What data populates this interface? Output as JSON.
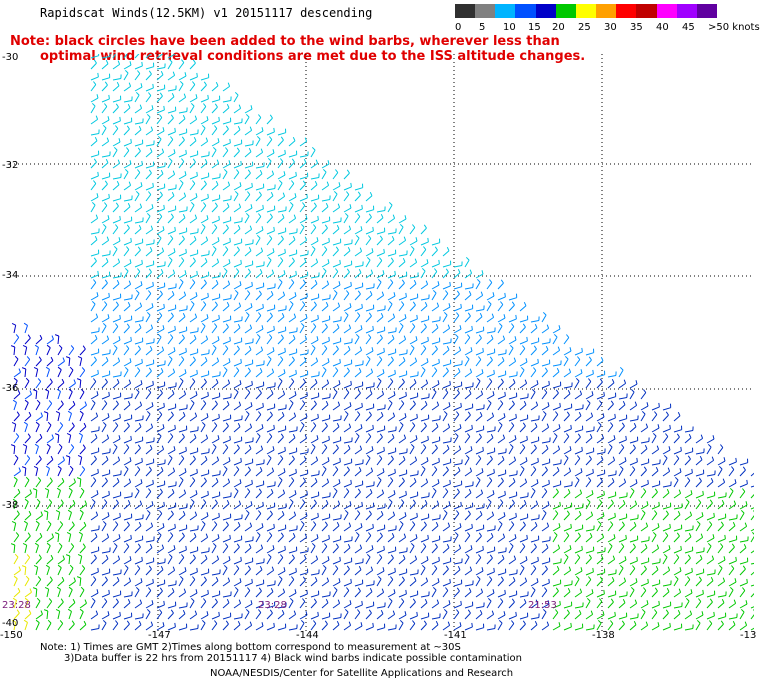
{
  "title": "Rapidscat Winds(12.5KM) v1 20151117 descending",
  "note": {
    "line1": "Note: black circles have been added to the wind barbs, wherever less than",
    "line2": "optimal wind retrieval conditions are met due to the ISS altitude changes."
  },
  "legend": {
    "labels": [
      "0",
      "5",
      "10",
      "15",
      "20",
      "25",
      "30",
      "35",
      "40",
      "45",
      ">50 knots"
    ],
    "colors": [
      "#303030",
      "#808080",
      "#00b4ff",
      "#0050ff",
      "#0000c8",
      "#00c800",
      "#ffff00",
      "#ffa000",
      "#ff0000",
      "#c00000",
      "#ff00ff",
      "#a000ff",
      "#6000a0"
    ]
  },
  "map": {
    "lat_labels": [
      "-30",
      "-32",
      "-34",
      "-36",
      "-38",
      "-40"
    ],
    "lon_labels": [
      "-150",
      "-147",
      "-144",
      "-141",
      "-138",
      "-13"
    ],
    "pass_times": [
      "23:28",
      "23:28",
      "21:53"
    ]
  },
  "footer": {
    "line1": "Note: 1) Times are GMT 2)Times along bottom correspond to measurement at ~30S",
    "line2": "3)Data buffer is 22 hrs from 20151117 4) Black wind barbs indicate possible contamination",
    "credit": "NOAA/NESDIS/Center for Satellite Applications and Research"
  }
}
